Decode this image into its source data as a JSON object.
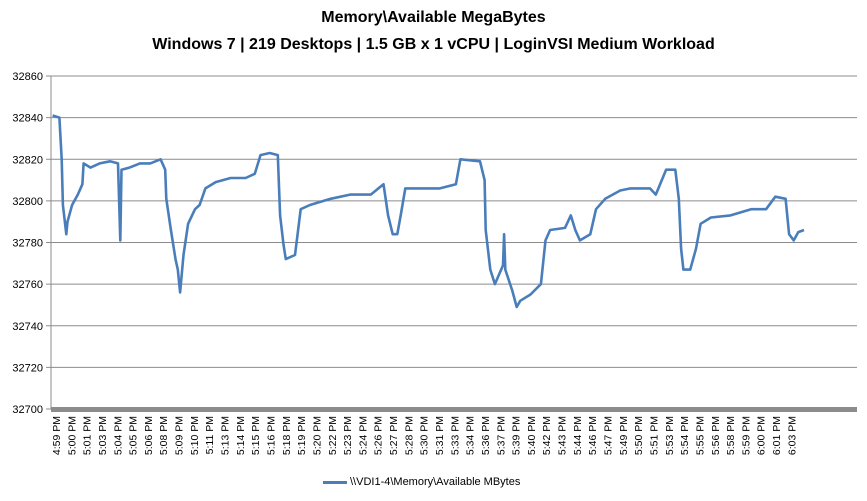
{
  "chart_data": {
    "type": "line",
    "title": "Memory\\Available  MegaBytes",
    "subtitle": "Windows 7  |  219 Desktops  |  1.5 GB x 1 vCPU  |  LoginVSI Medium Workload",
    "xlabel": "",
    "ylabel": "",
    "ylim": [
      32700,
      32860
    ],
    "yticks": [
      32700,
      32720,
      32740,
      32760,
      32780,
      32800,
      32820,
      32840,
      32860
    ],
    "grid": true,
    "legend_position": "bottom",
    "categories": [
      "4:59 PM",
      "5:00 PM",
      "5:01 PM",
      "5:03 PM",
      "5:04 PM",
      "5:05 PM",
      "5:06 PM",
      "5:08 PM",
      "5:09 PM",
      "5:10 PM",
      "5:11 PM",
      "5:13 PM",
      "5:14 PM",
      "5:15 PM",
      "5:16 PM",
      "5:18 PM",
      "5:19 PM",
      "5:20 PM",
      "5:22 PM",
      "5:23 PM",
      "5:24 PM",
      "5:26 PM",
      "5:27 PM",
      "5:28 PM",
      "5:30 PM",
      "5:31 PM",
      "5:33 PM",
      "5:34 PM",
      "5:36 PM",
      "5:37 PM",
      "5:39 PM",
      "5:40 PM",
      "5:42 PM",
      "5:43 PM",
      "5:44 PM",
      "5:46 PM",
      "5:47 PM",
      "5:49 PM",
      "5:50 PM",
      "5:51 PM",
      "5:53 PM",
      "5:54 PM",
      "5:55 PM",
      "5:56 PM",
      "5:58 PM",
      "5:59 PM",
      "6:00 PM",
      "6:01 PM",
      "6:03 PM"
    ],
    "x_unit": "minutes after 4:59 PM",
    "series": [
      {
        "name": "\\\\VDI1-4\\Memory\\Available MBytes",
        "color": "#4a7ebb",
        "points": [
          [
            -0.3,
            32841
          ],
          [
            0.3,
            32840
          ],
          [
            0.5,
            32820
          ],
          [
            0.6,
            32798
          ],
          [
            0.9,
            32784
          ],
          [
            1.0,
            32790
          ],
          [
            1.4,
            32798
          ],
          [
            1.9,
            32803
          ],
          [
            2.3,
            32808
          ],
          [
            2.4,
            32818
          ],
          [
            3.0,
            32816
          ],
          [
            3.8,
            32818
          ],
          [
            4.7,
            32819
          ],
          [
            5.4,
            32818
          ],
          [
            5.6,
            32781
          ],
          [
            5.7,
            32815
          ],
          [
            6.4,
            32816
          ],
          [
            7.3,
            32818
          ],
          [
            8.2,
            32818
          ],
          [
            9.1,
            32820
          ],
          [
            9.5,
            32815
          ],
          [
            9.6,
            32801
          ],
          [
            10.0,
            32786
          ],
          [
            10.4,
            32772
          ],
          [
            10.6,
            32767
          ],
          [
            10.8,
            32756
          ],
          [
            11.1,
            32774
          ],
          [
            11.5,
            32789
          ],
          [
            12.1,
            32796
          ],
          [
            12.5,
            32798
          ],
          [
            13.0,
            32806
          ],
          [
            13.9,
            32809
          ],
          [
            15.2,
            32811
          ],
          [
            16.5,
            32811
          ],
          [
            17.3,
            32813
          ],
          [
            17.8,
            32822
          ],
          [
            18.6,
            32823
          ],
          [
            19.3,
            32822
          ],
          [
            19.5,
            32793
          ],
          [
            19.8,
            32779
          ],
          [
            20.0,
            32772
          ],
          [
            20.8,
            32774
          ],
          [
            21.3,
            32796
          ],
          [
            22.1,
            32798
          ],
          [
            23.9,
            32801
          ],
          [
            25.6,
            32803
          ],
          [
            27.4,
            32803
          ],
          [
            28.5,
            32808
          ],
          [
            28.9,
            32793
          ],
          [
            29.3,
            32784
          ],
          [
            29.7,
            32784
          ],
          [
            30.0,
            32793
          ],
          [
            30.4,
            32806
          ],
          [
            31.7,
            32806
          ],
          [
            33.4,
            32806
          ],
          [
            34.8,
            32808
          ],
          [
            35.2,
            32820
          ],
          [
            36.9,
            32819
          ],
          [
            37.3,
            32810
          ],
          [
            37.4,
            32786
          ],
          [
            37.8,
            32767
          ],
          [
            38.2,
            32760
          ],
          [
            38.9,
            32769
          ],
          [
            39.0,
            32784
          ],
          [
            39.1,
            32767
          ],
          [
            39.7,
            32757
          ],
          [
            40.1,
            32749
          ],
          [
            40.4,
            32752
          ],
          [
            41.3,
            32755
          ],
          [
            42.2,
            32760
          ],
          [
            42.6,
            32781
          ],
          [
            43.0,
            32786
          ],
          [
            44.3,
            32787
          ],
          [
            44.8,
            32793
          ],
          [
            45.2,
            32786
          ],
          [
            45.6,
            32781
          ],
          [
            46.5,
            32784
          ],
          [
            47.0,
            32796
          ],
          [
            47.8,
            32801
          ],
          [
            49.1,
            32805
          ],
          [
            50.0,
            32806
          ],
          [
            51.7,
            32806
          ],
          [
            52.2,
            32803
          ],
          [
            53.1,
            32815
          ],
          [
            53.9,
            32815
          ],
          [
            54.2,
            32801
          ],
          [
            54.4,
            32777
          ],
          [
            54.6,
            32767
          ],
          [
            55.2,
            32767
          ],
          [
            55.7,
            32777
          ],
          [
            56.1,
            32789
          ],
          [
            57.0,
            32792
          ],
          [
            58.7,
            32793
          ],
          [
            60.5,
            32796
          ],
          [
            61.8,
            32796
          ],
          [
            62.6,
            32802
          ],
          [
            63.5,
            32801
          ],
          [
            63.8,
            32784
          ],
          [
            64.2,
            32781
          ],
          [
            64.6,
            32785
          ],
          [
            65.1,
            32786
          ]
        ]
      }
    ]
  }
}
